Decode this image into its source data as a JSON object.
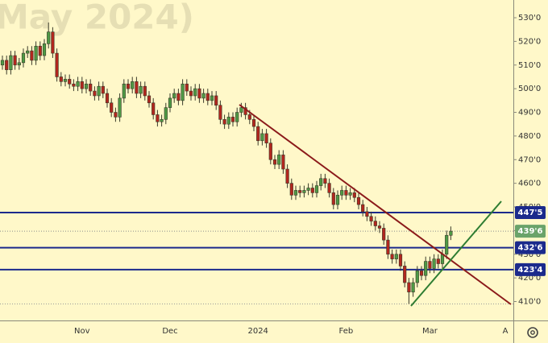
{
  "chart_data": {
    "type": "candlestick",
    "watermark": "May 2024)",
    "categories": [
      null,
      null,
      null,
      null,
      null,
      null,
      null,
      null,
      null,
      null,
      null,
      null,
      null,
      null,
      null,
      null,
      null,
      null,
      null,
      "Nov",
      null,
      null,
      null,
      null,
      null,
      null,
      null,
      null,
      null,
      null,
      null,
      null,
      null,
      null,
      null,
      null,
      null,
      null,
      null,
      null,
      "Dec",
      null,
      null,
      null,
      null,
      null,
      null,
      null,
      null,
      null,
      null,
      null,
      null,
      null,
      null,
      null,
      null,
      null,
      null,
      null,
      null,
      "2024",
      null,
      null,
      null,
      null,
      null,
      null,
      null,
      null,
      null,
      null,
      null,
      null,
      null,
      null,
      null,
      null,
      null,
      null,
      null,
      null,
      "Feb",
      null,
      null,
      null,
      null,
      null,
      null,
      null,
      null,
      null,
      null,
      null,
      null,
      null,
      null,
      null,
      null,
      null,
      null,
      null,
      "Mar",
      null,
      null,
      null,
      null,
      null,
      null,
      null,
      null,
      null,
      null,
      null,
      null,
      null,
      null,
      null,
      null,
      null,
      "A"
    ],
    "open": [
      510,
      512,
      508,
      514,
      510,
      511,
      515,
      516,
      512,
      518,
      514,
      519,
      524,
      515,
      505,
      503,
      504,
      502,
      501,
      503,
      500,
      502,
      499,
      497,
      501,
      498,
      494,
      490,
      488,
      496,
      502,
      500,
      503,
      498,
      501,
      497,
      494,
      489,
      486,
      487,
      492,
      496,
      498,
      495,
      502,
      499,
      497,
      500,
      496,
      498,
      495,
      497,
      493,
      487,
      485,
      488,
      486,
      490,
      492,
      489,
      487,
      484,
      478,
      481,
      477,
      470,
      468,
      472,
      466,
      460,
      455,
      457,
      456,
      457,
      458,
      456,
      459,
      462,
      460,
      456,
      451,
      455,
      457,
      455,
      456,
      454,
      451,
      448,
      446,
      444,
      442,
      441,
      436,
      430,
      428,
      430,
      425,
      418,
      414,
      418,
      423,
      421,
      427,
      424,
      428,
      426,
      430,
      438,
      null,
      null,
      null,
      null,
      null,
      null,
      null,
      null,
      null,
      null,
      null,
      null,
      null
    ],
    "high": [
      514,
      514,
      516,
      516,
      513,
      517,
      518,
      518,
      520,
      520,
      521,
      528,
      526,
      517,
      507,
      506,
      506,
      504,
      505,
      505,
      504,
      504,
      501,
      503,
      503,
      500,
      496,
      492,
      498,
      504,
      504,
      505,
      505,
      503,
      503,
      499,
      496,
      491,
      489,
      494,
      498,
      500,
      500,
      504,
      504,
      501,
      502,
      502,
      500,
      500,
      499,
      499,
      495,
      489,
      490,
      490,
      492,
      494,
      494,
      491,
      489,
      486,
      483,
      483,
      479,
      472,
      474,
      474,
      468,
      462,
      459,
      459,
      459,
      460,
      460,
      461,
      464,
      464,
      462,
      458,
      457,
      459,
      459,
      458,
      458,
      456,
      453,
      450,
      448,
      446,
      444,
      443,
      438,
      432,
      432,
      432,
      427,
      420,
      420,
      425,
      425,
      429,
      429,
      430,
      430,
      432,
      440,
      441.75,
      null,
      null,
      null,
      null,
      null,
      null,
      null,
      null,
      null,
      null,
      null,
      null,
      null
    ],
    "low": [
      508,
      506,
      506,
      508,
      508,
      509,
      513,
      510,
      510,
      512,
      512,
      517,
      513,
      503,
      501,
      501,
      500,
      499,
      499,
      498,
      498,
      497,
      495,
      495,
      496,
      492,
      488,
      486,
      486,
      494,
      498,
      498,
      496,
      496,
      495,
      492,
      487,
      484,
      484,
      485,
      490,
      494,
      493,
      493,
      497,
      495,
      495,
      494,
      494,
      493,
      493,
      491,
      485,
      483,
      483,
      484,
      484,
      488,
      487,
      485,
      482,
      476,
      476,
      475,
      468,
      466,
      466,
      464,
      458,
      453,
      453,
      454,
      454,
      455,
      454,
      454,
      457,
      458,
      454,
      449,
      449,
      453,
      453,
      453,
      452,
      449,
      446,
      444,
      442,
      440,
      439,
      434,
      428,
      426,
      426,
      423,
      416,
      409,
      412,
      416,
      419,
      419,
      422,
      422,
      424,
      424,
      428,
      436,
      null,
      null,
      null,
      null,
      null,
      null,
      null,
      null,
      null,
      null,
      null,
      null,
      null
    ],
    "close": [
      512,
      508,
      514,
      510,
      511,
      515,
      516,
      512,
      518,
      514,
      519,
      524,
      515,
      505,
      503,
      504,
      502,
      501,
      503,
      500,
      502,
      499,
      497,
      501,
      498,
      494,
      490,
      488,
      496,
      502,
      500,
      503,
      498,
      501,
      497,
      494,
      489,
      486,
      487,
      492,
      496,
      498,
      495,
      502,
      499,
      497,
      500,
      496,
      498,
      495,
      497,
      493,
      487,
      485,
      488,
      486,
      490,
      492,
      489,
      487,
      484,
      478,
      481,
      477,
      470,
      468,
      472,
      466,
      460,
      455,
      457,
      456,
      457,
      458,
      456,
      459,
      462,
      460,
      456,
      451,
      455,
      457,
      455,
      456,
      454,
      451,
      448,
      446,
      444,
      442,
      441,
      436,
      430,
      428,
      430,
      425,
      418,
      414,
      418,
      423,
      421,
      427,
      424,
      428,
      426,
      430,
      438,
      439.75,
      null,
      null,
      null,
      null,
      null,
      null,
      null,
      null,
      null,
      null,
      null,
      null,
      null
    ],
    "up_color": "#4e9a45",
    "down_color": "#b3261e",
    "ylim": [
      402,
      537.5
    ],
    "yticks": [
      {
        "value": 410,
        "label": "410'0"
      },
      {
        "value": 420,
        "label": "420'0"
      },
      {
        "value": 430,
        "label": "430'0"
      },
      {
        "value": 440,
        "label": "440'0"
      },
      {
        "value": 450,
        "label": "450'0"
      },
      {
        "value": 460,
        "label": "460'0"
      },
      {
        "value": 470,
        "label": "470'0"
      },
      {
        "value": 480,
        "label": "480'0"
      },
      {
        "value": 490,
        "label": "490'0"
      },
      {
        "value": 500,
        "label": "500'0"
      },
      {
        "value": 510,
        "label": "510'0"
      },
      {
        "value": 520,
        "label": "520'0"
      },
      {
        "value": 530,
        "label": "530'0"
      }
    ],
    "levels": [
      {
        "value": 447.625,
        "label": "447'5",
        "color": "#1b2a8c"
      },
      {
        "value": 432.75,
        "label": "432'6",
        "color": "#1b2a8c"
      },
      {
        "value": 423.5,
        "label": "423'4",
        "color": "#1b2a8c"
      }
    ],
    "last_price": {
      "value": 439.75,
      "label": "439'6",
      "color": "#6aa36a"
    },
    "low_line": 409
  }
}
